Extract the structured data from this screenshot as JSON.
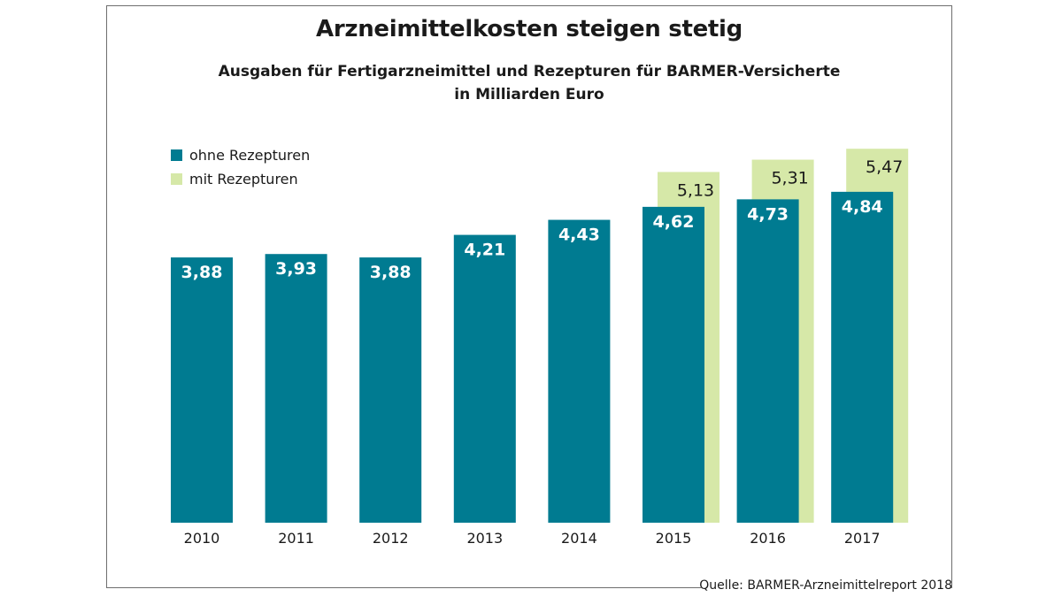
{
  "chart_data": {
    "type": "bar",
    "title": "Arzneimittelkosten steigen stetig",
    "subtitle_line1": "Ausgaben für Fertigarzneimittel und Rezepturen für BARMER-Versicherte",
    "subtitle_line2": "in Milliarden Euro",
    "categories": [
      "2010",
      "2011",
      "2012",
      "2013",
      "2014",
      "2015",
      "2016",
      "2017"
    ],
    "series": [
      {
        "name": "ohne Rezepturen",
        "color": "#007b91",
        "values": [
          3.88,
          3.93,
          3.88,
          4.21,
          4.43,
          4.62,
          4.73,
          4.84
        ],
        "labels": [
          "3,88",
          "3,93",
          "3,88",
          "4,21",
          "4,43",
          "4,62",
          "4,73",
          "4,84"
        ]
      },
      {
        "name": "mit Rezepturen",
        "color": "#d6e8a8",
        "values": [
          null,
          null,
          null,
          null,
          null,
          5.13,
          5.31,
          5.47
        ],
        "labels": [
          "",
          "",
          "",
          "",
          "",
          "5,13",
          "5,31",
          "5,47"
        ]
      }
    ],
    "xlabel": "",
    "ylabel": "",
    "grid": false,
    "legend_position": "top-left"
  },
  "source": "Quelle: BARMER-Arzneimittelreport 2018"
}
